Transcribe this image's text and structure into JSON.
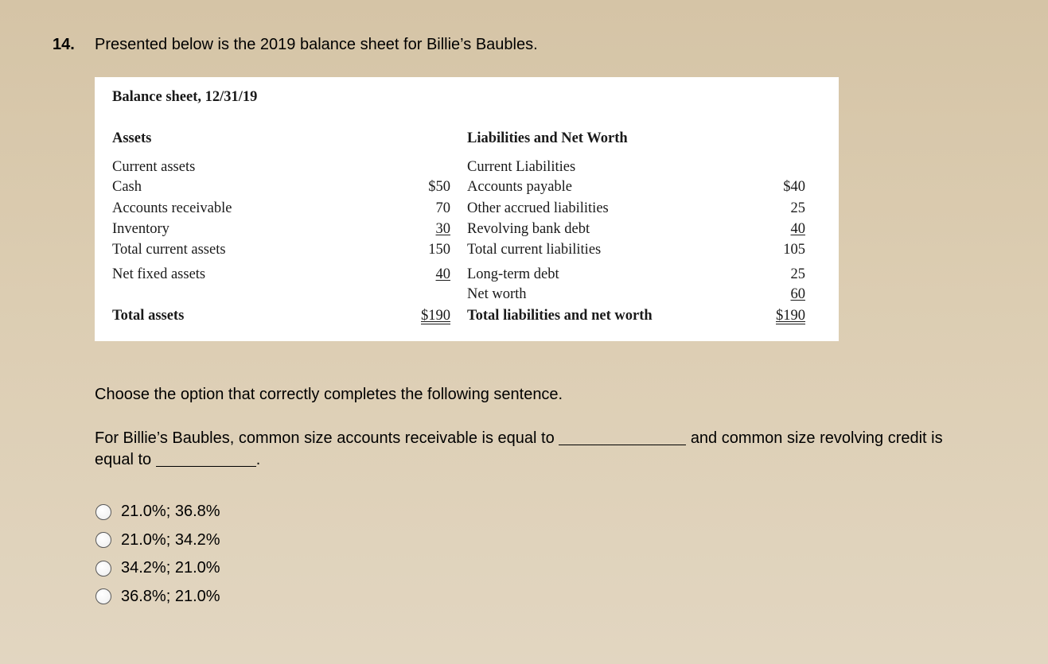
{
  "question": {
    "number": "14.",
    "text": "Presented below is the 2019 balance sheet for Billie’s Baubles."
  },
  "balance_sheet": {
    "title": "Balance sheet, 12/31/19",
    "assets_heading": "Assets",
    "liabilities_heading": "Liabilities and Net Worth",
    "rows": [
      {
        "left": "Current assets",
        "left_value": "",
        "right": "Current Liabilities",
        "right_value": ""
      },
      {
        "left": "Cash",
        "left_value": "$50",
        "right": "Accounts payable",
        "right_value": "$40"
      },
      {
        "left": "Accounts receivable",
        "left_value": "70",
        "right": "Other accrued liabilities",
        "right_value": "25"
      },
      {
        "left": "Inventory",
        "left_value": "30",
        "right": "Revolving bank debt",
        "right_value": "40"
      },
      {
        "left": "Total current assets",
        "left_value": "150",
        "right": "Total current liabilities",
        "right_value": "105"
      },
      {
        "left": "Net fixed assets",
        "left_value": "40",
        "right": "Long-term debt",
        "right_value": "25"
      },
      {
        "left": "",
        "left_value": "",
        "right": "Net worth",
        "right_value": "60"
      },
      {
        "left": "Total assets",
        "left_value": "$190",
        "right": "Total liabilities and net worth",
        "right_value": "$190"
      }
    ]
  },
  "prompt": "Choose the option that correctly completes the following sentence.",
  "sentence": {
    "part1": "For Billie’s Baubles, common size accounts receivable is equal to",
    "part2": "and common size revolving credit is equal to",
    "part3": "."
  },
  "options": [
    "21.0%; 36.8%",
    "21.0%; 34.2%",
    "34.2%; 21.0%",
    "36.8%; 21.0%"
  ]
}
